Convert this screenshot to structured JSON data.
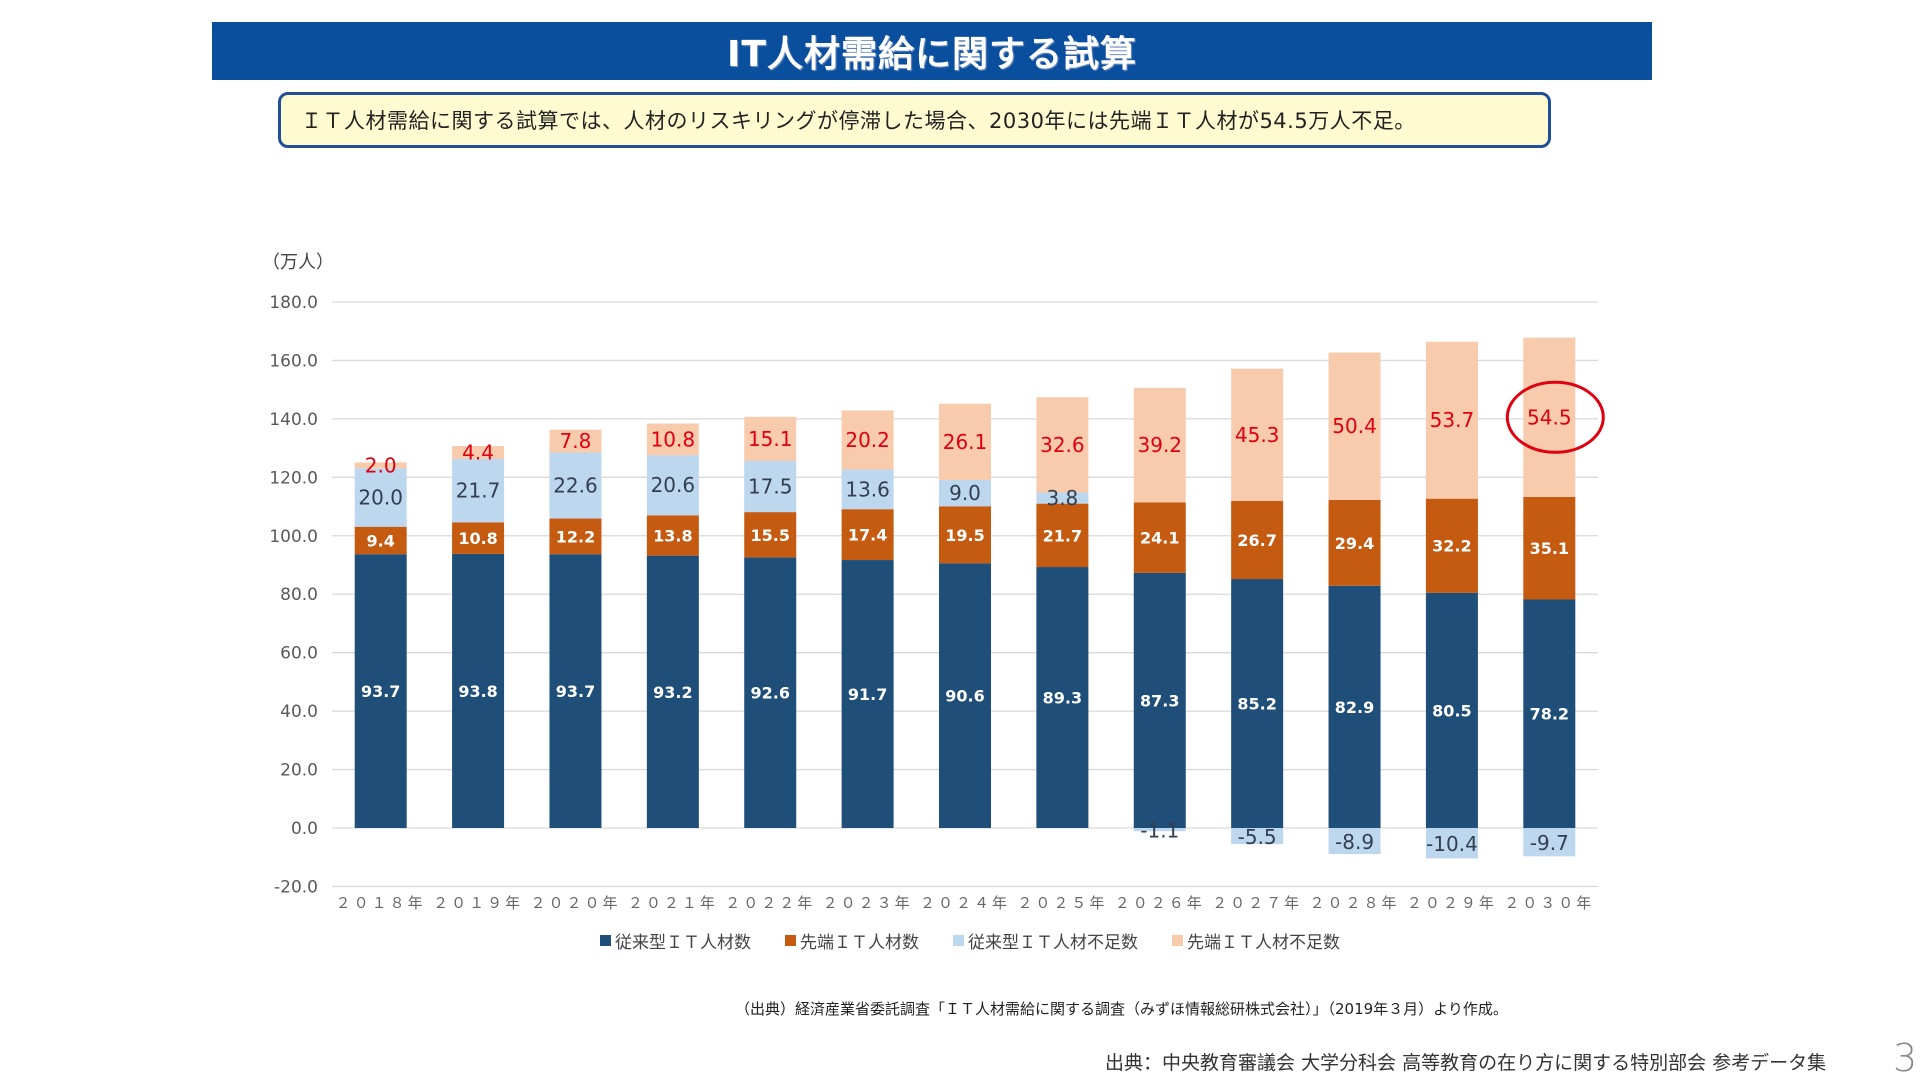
{
  "header": {
    "title": "IT人材需給に関する試算"
  },
  "callout": {
    "text": "ＩＴ人材需給に関する試算では、人材のリスキリングが停滞した場合、2030年には先端ＩＴ人材が54.5万人不足。"
  },
  "colors": {
    "header_bg": "#0a4f9e",
    "conventional": "#1f4e79",
    "advanced": "#c55a11",
    "conventional_shortage": "#bdd7ee",
    "advanced_shortage": "#f8cbad",
    "highlight": "#e0000f"
  },
  "chart_data": {
    "type": "bar",
    "stacked": true,
    "unit_label": "（万人）",
    "ylim": [
      -20,
      180
    ],
    "yticks": [
      -20,
      0,
      20,
      40,
      60,
      80,
      100,
      120,
      140,
      160,
      180
    ],
    "ytick_labels": [
      "-20.0",
      "0.0",
      "20.0",
      "40.0",
      "60.0",
      "80.0",
      "100.0",
      "120.0",
      "140.0",
      "160.0",
      "180.0"
    ],
    "grid": true,
    "categories": [
      "2018年",
      "2019年",
      "2020年",
      "2021年",
      "2022年",
      "2023年",
      "2024年",
      "2025年",
      "2026年",
      "2027年",
      "2028年",
      "2029年",
      "2030年"
    ],
    "category_labels": [
      "２０１８年",
      "２０１９年",
      "２０２０年",
      "２０２１年",
      "２０２２年",
      "２０２３年",
      "２０２４年",
      "２０２５年",
      "２０２６年",
      "２０２７年",
      "２０２８年",
      "２０２９年",
      "２０３０年"
    ],
    "series": [
      {
        "name": "従来型ＩＴ人材数",
        "color": "#1f4e79",
        "label_color": "#ffffff",
        "values": [
          93.7,
          93.8,
          93.7,
          93.2,
          92.6,
          91.7,
          90.6,
          89.3,
          87.3,
          85.2,
          82.9,
          80.5,
          78.2
        ]
      },
      {
        "name": "先端ＩＴ人材数",
        "color": "#c55a11",
        "label_color": "#ffffff",
        "values": [
          9.4,
          10.8,
          12.2,
          13.8,
          15.5,
          17.4,
          19.5,
          21.7,
          24.1,
          26.7,
          29.4,
          32.2,
          35.1
        ]
      },
      {
        "name": "従来型ＩＴ人材不足数",
        "color": "#bdd7ee",
        "label_color": "#333f50",
        "values": [
          20.0,
          21.7,
          22.6,
          20.6,
          17.5,
          13.6,
          9.0,
          3.8,
          -1.1,
          -5.5,
          -8.9,
          -10.4,
          -9.7
        ]
      },
      {
        "name": "先端ＩＴ人材不足数",
        "color": "#f8cbad",
        "label_color": "#e0000f",
        "values": [
          2.0,
          4.4,
          7.8,
          10.8,
          15.1,
          20.2,
          26.1,
          32.6,
          39.2,
          45.3,
          50.4,
          53.7,
          54.5
        ]
      }
    ],
    "annotation": {
      "category": "2030年",
      "series": "先端ＩＴ人材不足数",
      "value": 54.5,
      "shape": "red-circle"
    },
    "legend": "bottom"
  },
  "source_note": "（出典）経済産業省委託調査「ＩＴ人材需給に関する調査（みずほ情報総研株式会社）」（2019年３月）より作成。",
  "footer": {
    "credit": "出典：中央教育審議会 大学分科会 高等教育の在り方に関する特別部会 参考データ集",
    "page_number": "3"
  }
}
